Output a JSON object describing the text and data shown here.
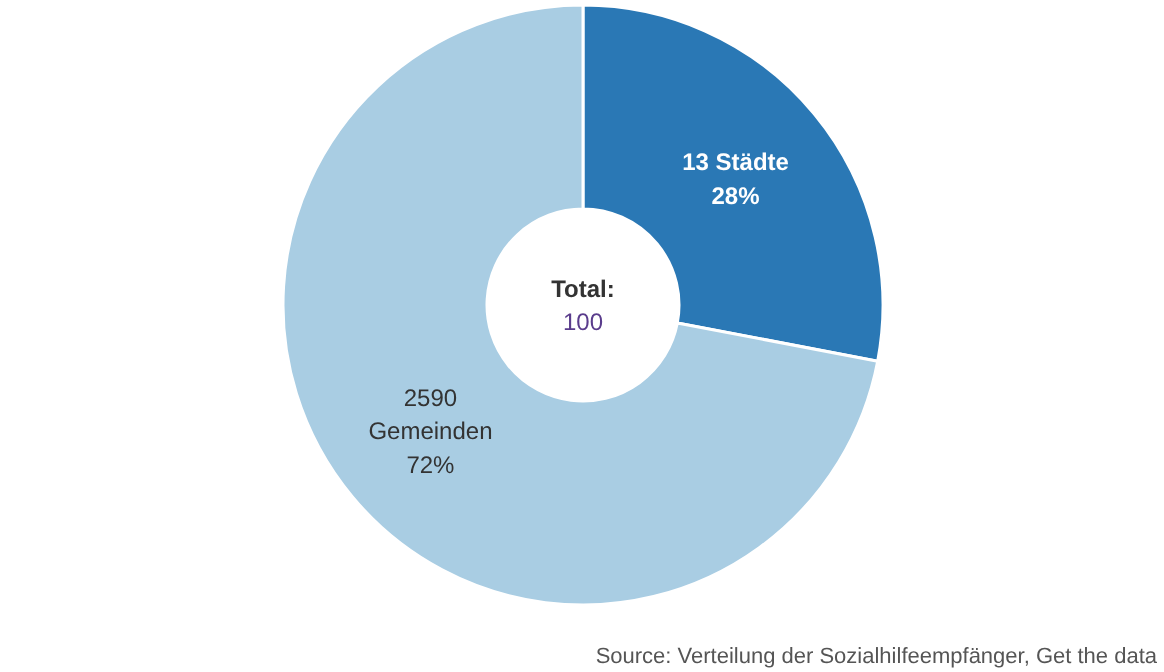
{
  "chart_data": {
    "type": "donut",
    "categories": [
      "13 Städte",
      "2590\nGemeinden"
    ],
    "values": [
      28,
      72
    ],
    "value_labels": [
      "28%",
      "72%"
    ],
    "colors": [
      "#2a78b5",
      "#a9cde3"
    ],
    "annotations": [
      "Total:",
      "100",
      "Source: Verteilung der Sozialhilfeempfänger, Get the data"
    ],
    "legend": false
  }
}
